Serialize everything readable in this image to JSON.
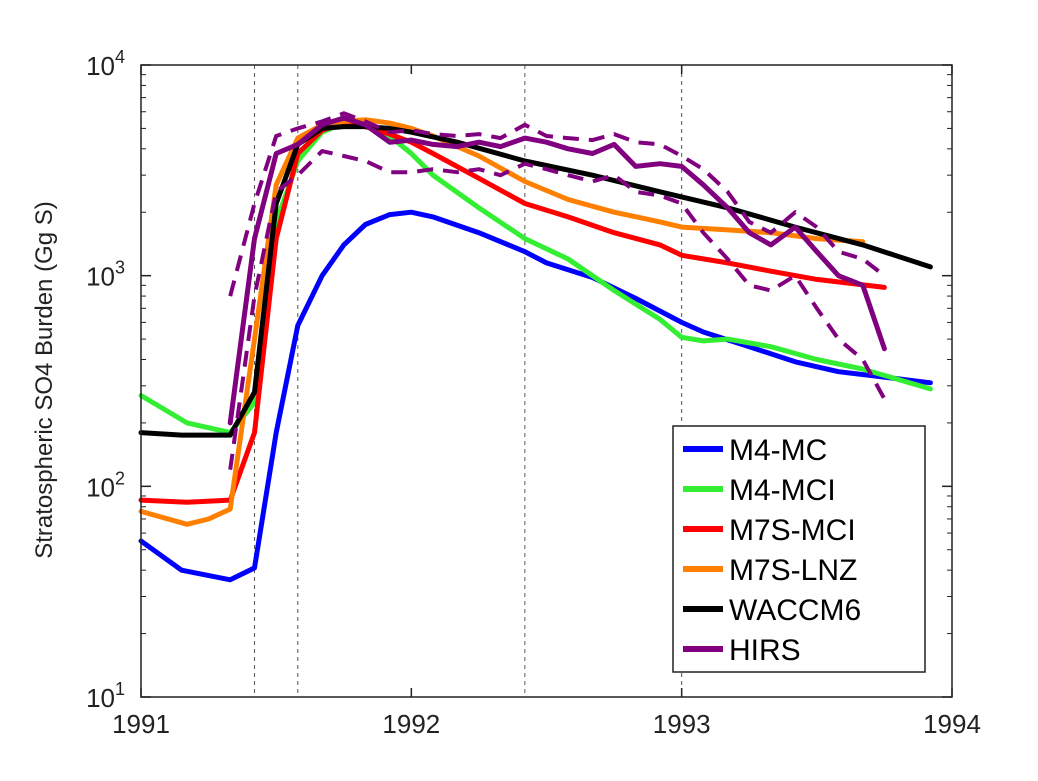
{
  "chart_data": {
    "type": "line",
    "title": "",
    "xlabel": "",
    "ylabel": "Stratospheric SO4 Burden (Gg S)",
    "xlim": [
      1991,
      1994
    ],
    "ylim": [
      10,
      10000
    ],
    "yscale": "log",
    "grid": false,
    "legend_position": "bottom-right",
    "x_ticks": [
      {
        "value": 1991,
        "label": "1991"
      },
      {
        "value": 1992,
        "label": "1992"
      },
      {
        "value": 1993,
        "label": "1993"
      },
      {
        "value": 1994,
        "label": "1994"
      }
    ],
    "y_ticks": [
      {
        "value": 10,
        "base": "10",
        "exp": "1"
      },
      {
        "value": 100,
        "base": "10",
        "exp": "2"
      },
      {
        "value": 1000,
        "base": "10",
        "exp": "3"
      },
      {
        "value": 10000,
        "base": "10",
        "exp": "4"
      }
    ],
    "vertical_markers": [
      1991.42,
      1991.58,
      1992.42,
      1993.0
    ],
    "series": [
      {
        "name": "M4-MC",
        "color": "#0000ff",
        "style": "solid",
        "x": [
          1991.0,
          1991.15,
          1991.33,
          1991.42,
          1991.5,
          1991.58,
          1991.67,
          1991.75,
          1991.83,
          1991.92,
          1992.0,
          1992.08,
          1992.25,
          1992.42,
          1992.5,
          1992.67,
          1992.83,
          1993.0,
          1993.08,
          1993.25,
          1993.42,
          1993.58,
          1993.75,
          1993.92
        ],
        "y": [
          55,
          40,
          36,
          41,
          180,
          580,
          1000,
          1400,
          1750,
          1950,
          2000,
          1900,
          1600,
          1300,
          1150,
          980,
          780,
          600,
          540,
          460,
          390,
          350,
          330,
          310
        ]
      },
      {
        "name": "M4-MCI",
        "color": "#33ee33",
        "style": "solid",
        "x": [
          1991.0,
          1991.17,
          1991.33,
          1991.42,
          1991.5,
          1991.58,
          1991.67,
          1991.75,
          1991.83,
          1991.92,
          1992.0,
          1992.08,
          1992.25,
          1992.42,
          1992.58,
          1992.75,
          1992.92,
          1993.0,
          1993.08,
          1993.17,
          1993.33,
          1993.5,
          1993.67,
          1993.92
        ],
        "y": [
          270,
          200,
          180,
          250,
          1800,
          3500,
          4800,
          5300,
          5200,
          4600,
          3800,
          3000,
          2100,
          1500,
          1200,
          850,
          620,
          510,
          490,
          500,
          460,
          400,
          360,
          290
        ]
      },
      {
        "name": "M7S-MCI",
        "color": "#ff0000",
        "style": "solid",
        "x": [
          1991.0,
          1991.17,
          1991.33,
          1991.42,
          1991.5,
          1991.58,
          1991.67,
          1991.75,
          1991.83,
          1991.92,
          1992.0,
          1992.08,
          1992.25,
          1992.42,
          1992.58,
          1992.75,
          1992.92,
          1993.0,
          1993.17,
          1993.33,
          1993.5,
          1993.75
        ],
        "y": [
          86,
          84,
          86,
          180,
          1500,
          3800,
          4900,
          5300,
          5100,
          4700,
          4300,
          3800,
          2900,
          2200,
          1900,
          1600,
          1400,
          1250,
          1150,
          1050,
          960,
          880
        ]
      },
      {
        "name": "M7S-LNZ",
        "color": "#ff8000",
        "style": "solid",
        "x": [
          1991.0,
          1991.17,
          1991.25,
          1991.33,
          1991.42,
          1991.5,
          1991.58,
          1991.67,
          1991.75,
          1991.83,
          1991.92,
          1992.0,
          1992.08,
          1992.25,
          1992.42,
          1992.58,
          1992.75,
          1992.92,
          1993.0,
          1993.17,
          1993.33,
          1993.5,
          1993.67
        ],
        "y": [
          76,
          66,
          70,
          78,
          500,
          2700,
          4500,
          5200,
          5400,
          5500,
          5300,
          5000,
          4600,
          3700,
          2800,
          2300,
          2000,
          1800,
          1700,
          1650,
          1600,
          1500,
          1450
        ]
      },
      {
        "name": "WACCM6",
        "color": "#000000",
        "style": "solid",
        "x": [
          1991.0,
          1991.15,
          1991.33,
          1991.42,
          1991.5,
          1991.58,
          1991.67,
          1991.75,
          1991.83,
          1991.92,
          1992.0,
          1992.17,
          1992.42,
          1992.67,
          1992.92,
          1993.17,
          1993.42,
          1993.67,
          1993.92
        ],
        "y": [
          180,
          175,
          175,
          280,
          2200,
          4200,
          5000,
          5100,
          5100,
          5000,
          4800,
          4300,
          3500,
          3000,
          2500,
          2100,
          1700,
          1400,
          1100
        ]
      },
      {
        "name": "HIRS",
        "color": "#800080",
        "style": "solid",
        "x": [
          1991.33,
          1991.42,
          1991.5,
          1991.58,
          1991.67,
          1991.75,
          1991.83,
          1991.92,
          1992.0,
          1992.08,
          1992.17,
          1992.25,
          1992.33,
          1992.42,
          1992.5,
          1992.58,
          1992.67,
          1992.75,
          1992.83,
          1992.92,
          1993.0,
          1993.08,
          1993.17,
          1993.25,
          1993.33,
          1993.42,
          1993.5,
          1993.58,
          1993.67,
          1993.75
        ],
        "y": [
          200,
          1500,
          3800,
          4200,
          5200,
          5600,
          5200,
          4300,
          4400,
          4200,
          4100,
          4300,
          4100,
          4500,
          4300,
          4000,
          3800,
          4200,
          3300,
          3400,
          3300,
          2700,
          2100,
          1600,
          1400,
          1700,
          1300,
          1000,
          900,
          450
        ]
      },
      {
        "name": "",
        "color": "#800080",
        "style": "dashed",
        "x": [
          1991.33,
          1991.42,
          1991.5,
          1991.58,
          1991.67,
          1991.75,
          1991.83,
          1991.92,
          1992.0,
          1992.08,
          1992.17,
          1992.25,
          1992.33,
          1992.42,
          1992.5,
          1992.58,
          1992.67,
          1992.75,
          1992.83,
          1992.92,
          1993.0,
          1993.08,
          1993.17,
          1993.25,
          1993.33,
          1993.42,
          1993.5,
          1993.58,
          1993.67,
          1993.75
        ],
        "y": [
          800,
          2200,
          4600,
          5000,
          5400,
          5900,
          5400,
          4800,
          4900,
          4700,
          4600,
          4700,
          4500,
          5200,
          4600,
          4500,
          4400,
          4700,
          4300,
          4200,
          3700,
          3200,
          2500,
          1800,
          1600,
          2000,
          1700,
          1300,
          1200,
          1000
        ]
      },
      {
        "name": "",
        "color": "#800080",
        "style": "dashed",
        "x": [
          1991.33,
          1991.42,
          1991.5,
          1991.58,
          1991.67,
          1991.75,
          1991.83,
          1991.92,
          1992.0,
          1992.08,
          1992.17,
          1992.25,
          1992.33,
          1992.42,
          1992.5,
          1992.58,
          1992.67,
          1992.75,
          1992.83,
          1992.92,
          1993.0,
          1993.08,
          1993.17,
          1993.25,
          1993.33,
          1993.42,
          1993.5,
          1993.58,
          1993.67,
          1993.75
        ],
        "y": [
          120,
          800,
          2500,
          3000,
          3900,
          3700,
          3500,
          3100,
          3100,
          3200,
          3100,
          3200,
          3000,
          3400,
          3200,
          3000,
          2800,
          3000,
          2500,
          2400,
          2200,
          1600,
          1200,
          900,
          850,
          1000,
          700,
          500,
          400,
          260
        ]
      }
    ],
    "legend": [
      {
        "label": "M4-MC",
        "color": "#0000ff"
      },
      {
        "label": "M4-MCI",
        "color": "#33ee33"
      },
      {
        "label": "M7S-MCI",
        "color": "#ff0000"
      },
      {
        "label": "M7S-LNZ",
        "color": "#ff8000"
      },
      {
        "label": "WACCM6",
        "color": "#000000"
      },
      {
        "label": "HIRS",
        "color": "#800080"
      }
    ]
  }
}
